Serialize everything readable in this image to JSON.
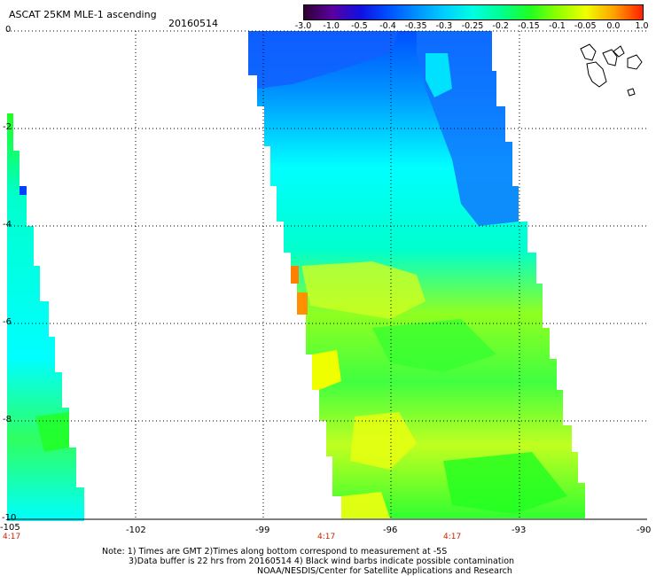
{
  "title": "ASCAT 25KM MLE-1 ascending",
  "date": "20160514",
  "colorbar": {
    "labels": [
      "-3.0",
      "-1.0",
      "-0.5",
      "-0.4",
      "-0.35",
      "-0.3",
      "-0.25",
      "-0.2",
      "-0.15",
      "-0.1",
      "-0.05",
      "0.0",
      "1.0"
    ],
    "colors": [
      "#300030",
      "#5a00a0",
      "#1010e0",
      "#0050ff",
      "#0090ff",
      "#00d0ff",
      "#00ffe0",
      "#00ff90",
      "#20ff20",
      "#90ff00",
      "#f0ff00",
      "#ffa000",
      "#ff2000"
    ]
  },
  "axes": {
    "x_ticks": [
      "-105",
      "-102",
      "-99",
      "-96",
      "-93",
      "-90"
    ],
    "y_ticks": [
      "0",
      "-2",
      "-4",
      "-6",
      "-8",
      "-10"
    ],
    "lon_range": [
      -105,
      -90
    ],
    "lat_range": [
      -10,
      0
    ]
  },
  "times": [
    "4:17",
    "4:17",
    "4:17"
  ],
  "notes": [
    "Note: 1) Times are GMT 2)Times along bottom correspond to measurement at -5S",
    "3)Data buffer is 22 hrs from 20160514 4) Black wind barbs indicate possible contamination",
    "NOAA/NESDIS/Center for Satellite Applications and Research"
  ],
  "colors": {
    "swath_blue": "#0060ff",
    "swath_cyan": "#00ffff",
    "swath_green": "#20ff20",
    "swath_yellow": "#e0ff00",
    "swath_orange": "#ff8000"
  }
}
